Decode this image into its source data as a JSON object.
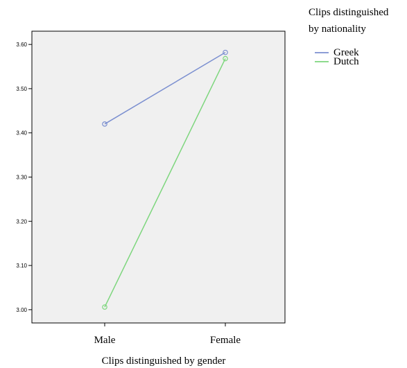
{
  "chart_data": {
    "type": "line",
    "categories": [
      "Male",
      "Female"
    ],
    "series": [
      {
        "name": "Greek",
        "values": [
          3.42,
          3.582
        ],
        "color": "#7b8fd0"
      },
      {
        "name": "Dutch",
        "values": [
          3.006,
          3.568
        ],
        "color": "#7dd67d"
      }
    ],
    "yticks": [
      "3.00",
      "3.10",
      "3.20",
      "3.30",
      "3.40",
      "3.50",
      "3.60"
    ],
    "ylim": [
      2.97,
      3.63
    ],
    "xlabel": "Clips distinguished by gender",
    "ylabel": "",
    "legend": {
      "title_lines": [
        "Clips distinguished",
        "by nationality"
      ],
      "position": "top-right"
    },
    "grid": false,
    "plot_background": "#f0f0f0",
    "marker": "open-circle"
  }
}
